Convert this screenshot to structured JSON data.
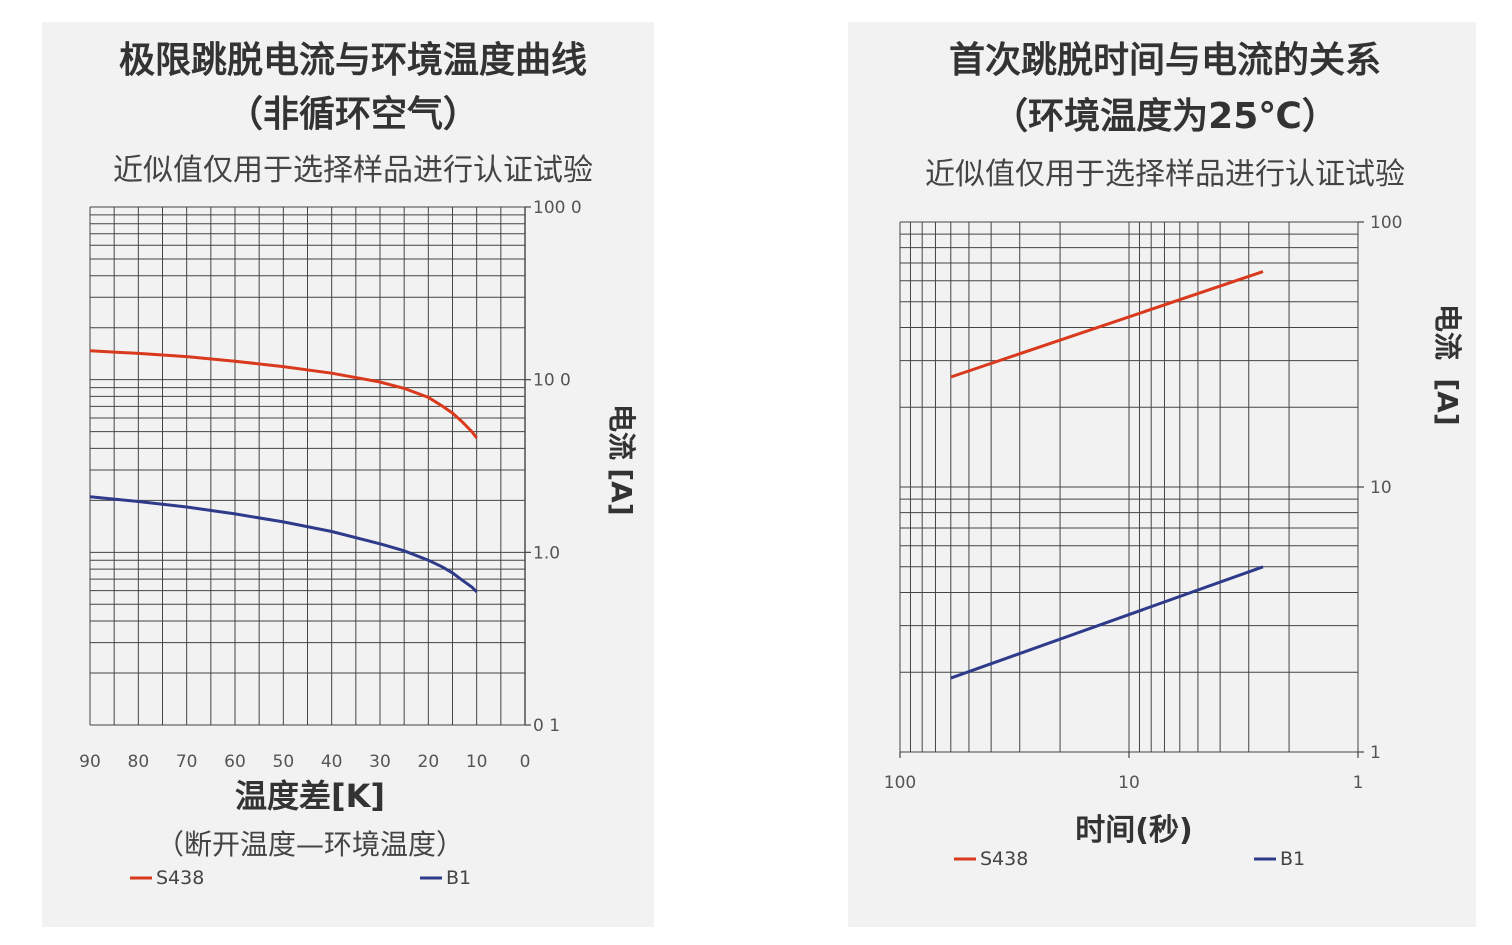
{
  "chart_data": [
    {
      "type": "line",
      "title": "极限跳脱电流与环境温度曲线",
      "subtitle_1": "（非循环空气）",
      "subtitle_2": "近似值仅用于选择样品进行认证试验",
      "xlabel": "温度差[K]",
      "xlabel_note": "（断开温度—环境温度）",
      "ylabel_1": "电流",
      "ylabel_2": "[A]",
      "xlim": [
        90,
        0
      ],
      "x_ticks": [
        90,
        80,
        70,
        60,
        50,
        40,
        30,
        20,
        10,
        0
      ],
      "x_tick_labels": [
        "90",
        "80",
        "70",
        "60",
        "50",
        "40",
        "30",
        "20",
        "10",
        "0"
      ],
      "y_scale": "log",
      "ylim": [
        0.1,
        100
      ],
      "y_ticks": [
        0.1,
        1,
        10,
        100
      ],
      "y_tick_labels": [
        "0 1",
        "1.0",
        "10 0",
        "100 0"
      ],
      "grid": true,
      "legend_position": "bottom",
      "series": [
        {
          "name": "S438",
          "color": "#d9391c",
          "x": [
            90,
            80,
            70,
            60,
            50,
            40,
            30,
            25,
            20,
            17,
            15,
            13,
            11,
            10
          ],
          "y": [
            14.7,
            14.2,
            13.6,
            12.8,
            11.9,
            10.9,
            9.7,
            8.9,
            7.9,
            7.0,
            6.4,
            5.7,
            5.0,
            4.6
          ]
        },
        {
          "name": "B1",
          "color": "#2e3a8a",
          "x": [
            90,
            80,
            70,
            60,
            50,
            40,
            30,
            25,
            20,
            17,
            15,
            13,
            11,
            10
          ],
          "y": [
            2.1,
            1.97,
            1.83,
            1.67,
            1.5,
            1.32,
            1.12,
            1.02,
            0.9,
            0.82,
            0.76,
            0.69,
            0.63,
            0.59
          ]
        }
      ]
    },
    {
      "type": "line",
      "title": "首次跳脱时间与电流的关系",
      "subtitle_1": "（环境温度为25℃）",
      "subtitle_2": "近似值仅用于选择样品进行认证试验",
      "xlabel": "时间(秒)",
      "ylabel_1": "电流",
      "ylabel_2": "[A]",
      "x_scale": "log",
      "xlim": [
        100,
        1
      ],
      "x_ticks": [
        100,
        10,
        1
      ],
      "x_tick_labels": [
        "100",
        "10",
        "1"
      ],
      "y_scale": "log",
      "ylim": [
        1,
        100
      ],
      "y_ticks": [
        1,
        10,
        100
      ],
      "y_tick_labels": [
        "1",
        "10",
        "100"
      ],
      "grid": true,
      "legend_position": "bottom",
      "series": [
        {
          "name": "S438",
          "color": "#d9391c",
          "x": [
            60,
            2.6
          ],
          "y": [
            26,
            65
          ]
        },
        {
          "name": "B1",
          "color": "#2e3a8a",
          "x": [
            60,
            2.6
          ],
          "y": [
            1.9,
            5.0
          ]
        }
      ]
    }
  ]
}
